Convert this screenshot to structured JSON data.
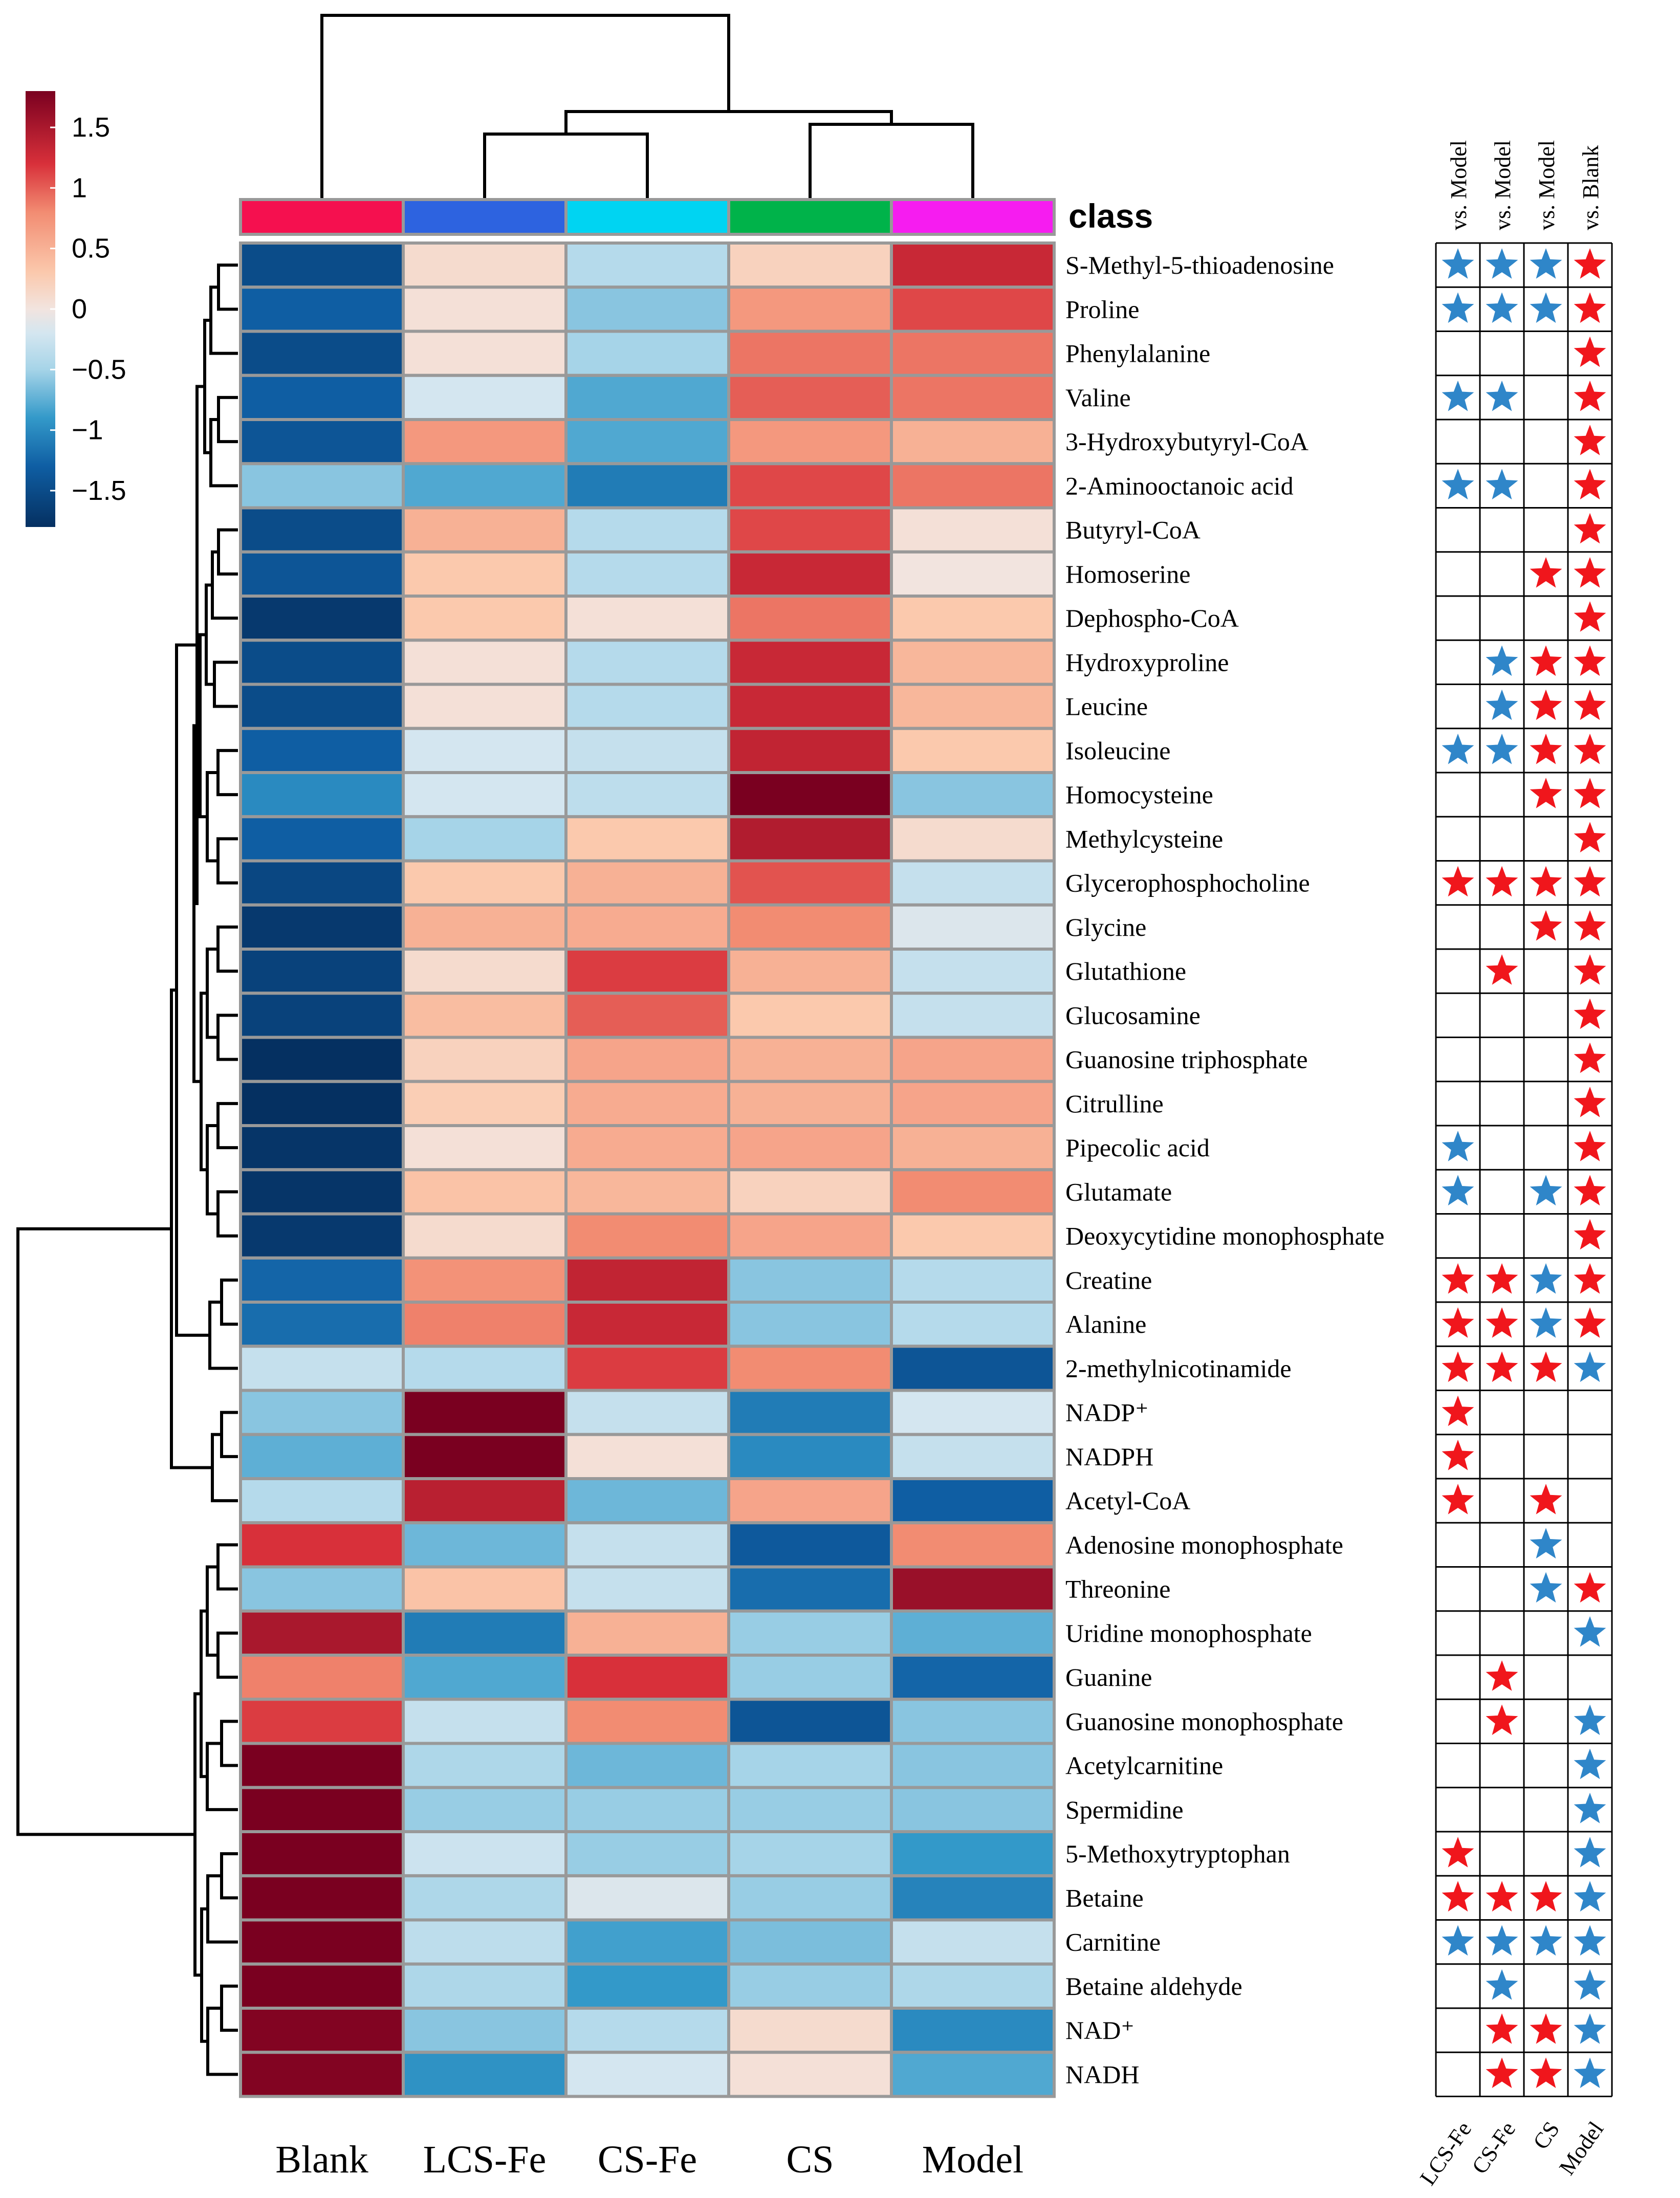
{
  "chart_data": {
    "type": "heatmap",
    "legend_title": "",
    "color_scale": {
      "min": -1.8,
      "max": 1.8,
      "ticks": [
        1.5,
        1,
        0.5,
        0,
        -0.5,
        -1,
        -1.5
      ],
      "tick_labels": [
        "1.5",
        "1",
        "0.5",
        "0",
        "−0.5",
        "−1",
        "−1.5"
      ],
      "stops": [
        {
          "v": -1.8,
          "c": "#053061"
        },
        {
          "v": -1.3,
          "c": "#0f5ea3"
        },
        {
          "v": -0.9,
          "c": "#3399c9"
        },
        {
          "v": -0.5,
          "c": "#a6d4e8"
        },
        {
          "v": -0.2,
          "c": "#d4e6f0"
        },
        {
          "v": 0,
          "c": "#f2e4df"
        },
        {
          "v": 0.3,
          "c": "#fbc9ad"
        },
        {
          "v": 0.8,
          "c": "#f28c72"
        },
        {
          "v": 1.2,
          "c": "#d8303a"
        },
        {
          "v": 1.8,
          "c": "#7a0020"
        }
      ]
    },
    "class_label": "class",
    "columns": [
      "Blank",
      "LCS-Fe",
      "CS-Fe",
      "CS",
      "Model"
    ],
    "class_colors": [
      "#f5104f",
      "#2d63e0",
      "#00d4f2",
      "#00b34a",
      "#f61cf0"
    ],
    "rows": [
      "S-Methyl-5-thioadenosine",
      "Proline",
      "Phenylalanine",
      "Valine",
      "3-Hydroxybutyryl-CoA",
      "2-Aminooctanoic acid",
      "Butyryl-CoA",
      "Homoserine",
      "Dephospho-CoA",
      "Hydroxyproline",
      "Leucine",
      "Isoleucine",
      "Homocysteine",
      "Methylcysteine",
      "Glycerophosphocholine",
      "Glycine",
      "Glutathione",
      "Glucosamine",
      "Guanosine triphosphate",
      "Citrulline",
      "Pipecolic acid",
      "Glutamate",
      "Deoxycytidine monophosphate",
      "Creatine",
      "Alanine",
      "2-methylnicotinamide",
      "NADP⁺",
      "NADPH",
      "Acetyl-CoA",
      "Adenosine monophosphate",
      "Threonine",
      "Uridine monophosphate",
      "Guanine",
      "Guanosine monophosphate",
      "Acetylcarnitine",
      "Spermidine",
      "5-Methoxytryptophan",
      "Betaine",
      "Carnitine",
      "Betaine aldehyde",
      "NAD⁺",
      "NADH"
    ],
    "values": [
      [
        -1.5,
        0.1,
        -0.4,
        0.2,
        1.3
      ],
      [
        -1.3,
        0.05,
        -0.6,
        0.7,
        1.1
      ],
      [
        -1.5,
        0.05,
        -0.5,
        0.9,
        0.9
      ],
      [
        -1.3,
        -0.2,
        -0.8,
        1.0,
        0.9
      ],
      [
        -1.4,
        0.7,
        -0.8,
        0.7,
        0.5
      ],
      [
        -0.6,
        -0.8,
        -1.1,
        1.1,
        0.9
      ],
      [
        -1.5,
        0.5,
        -0.4,
        1.1,
        0.05
      ],
      [
        -1.4,
        0.3,
        -0.4,
        1.3,
        0.0
      ],
      [
        -1.7,
        0.3,
        0.05,
        0.9,
        0.3
      ],
      [
        -1.5,
        0.05,
        -0.4,
        1.3,
        0.45
      ],
      [
        -1.5,
        0.05,
        -0.4,
        1.3,
        0.45
      ],
      [
        -1.3,
        -0.2,
        -0.3,
        1.35,
        0.3
      ],
      [
        -1.0,
        -0.2,
        -0.35,
        1.8,
        -0.6
      ],
      [
        -1.3,
        -0.5,
        0.3,
        1.45,
        0.1
      ],
      [
        -1.55,
        0.3,
        0.5,
        1.05,
        -0.3
      ],
      [
        -1.7,
        0.5,
        0.55,
        0.8,
        -0.15
      ],
      [
        -1.6,
        0.1,
        1.15,
        0.5,
        -0.3
      ],
      [
        -1.6,
        0.4,
        1.0,
        0.3,
        -0.3
      ],
      [
        -1.8,
        0.2,
        0.6,
        0.5,
        0.6
      ],
      [
        -1.8,
        0.25,
        0.55,
        0.5,
        0.6
      ],
      [
        -1.75,
        0.05,
        0.55,
        0.6,
        0.5
      ],
      [
        -1.75,
        0.35,
        0.45,
        0.2,
        0.8
      ],
      [
        -1.7,
        0.1,
        0.8,
        0.6,
        0.3
      ],
      [
        -1.25,
        0.75,
        1.35,
        -0.6,
        -0.4
      ],
      [
        -1.2,
        0.85,
        1.3,
        -0.6,
        -0.4
      ],
      [
        -0.3,
        -0.4,
        1.15,
        0.8,
        -1.4
      ],
      [
        -0.6,
        1.8,
        -0.3,
        -1.1,
        -0.2
      ],
      [
        -0.75,
        1.8,
        0.05,
        -1.0,
        -0.3
      ],
      [
        -0.4,
        1.4,
        -0.7,
        0.6,
        -1.3
      ],
      [
        1.2,
        -0.7,
        -0.3,
        -1.35,
        0.8
      ],
      [
        -0.6,
        0.35,
        -0.3,
        -1.2,
        1.6
      ],
      [
        1.5,
        -1.1,
        0.5,
        -0.55,
        -0.75
      ],
      [
        0.85,
        -0.8,
        1.2,
        -0.55,
        -1.25
      ],
      [
        1.15,
        -0.3,
        0.8,
        -1.4,
        -0.6
      ],
      [
        1.8,
        -0.45,
        -0.7,
        -0.5,
        -0.6
      ],
      [
        1.8,
        -0.55,
        -0.55,
        -0.55,
        -0.6
      ],
      [
        1.8,
        -0.25,
        -0.55,
        -0.5,
        -0.9
      ],
      [
        1.8,
        -0.45,
        -0.15,
        -0.55,
        -1.05
      ],
      [
        1.8,
        -0.35,
        -0.85,
        -0.65,
        -0.3
      ],
      [
        1.8,
        -0.45,
        -0.9,
        -0.55,
        -0.45
      ],
      [
        1.75,
        -0.6,
        -0.4,
        0.1,
        -1.0
      ],
      [
        1.75,
        -0.95,
        -0.2,
        0.05,
        -0.8
      ]
    ],
    "significance": {
      "top_labels": [
        "vs. Model",
        "vs. Model",
        "vs. Model",
        "vs. Blank"
      ],
      "bottom_labels": [
        "LCS-Fe",
        "CS-Fe",
        "CS",
        "Model"
      ],
      "legend": {
        "R": "red star",
        "B": "blue star"
      },
      "marks": [
        [
          "B",
          "B",
          "B",
          "R"
        ],
        [
          "B",
          "B",
          "B",
          "R"
        ],
        [
          "",
          "",
          "",
          "R"
        ],
        [
          "B",
          "B",
          "",
          "R"
        ],
        [
          "",
          "",
          "",
          "R"
        ],
        [
          "B",
          "B",
          "",
          "R"
        ],
        [
          "",
          "",
          "",
          "R"
        ],
        [
          "",
          "",
          "R",
          "R"
        ],
        [
          "",
          "",
          "",
          "R"
        ],
        [
          "",
          "B",
          "R",
          "R"
        ],
        [
          "",
          "B",
          "R",
          "R"
        ],
        [
          "B",
          "B",
          "R",
          "R"
        ],
        [
          "",
          "",
          "R",
          "R"
        ],
        [
          "",
          "",
          "",
          "R"
        ],
        [
          "R",
          "R",
          "R",
          "R"
        ],
        [
          "",
          "",
          "R",
          "R"
        ],
        [
          "",
          "R",
          "",
          "R"
        ],
        [
          "",
          "",
          "",
          "R"
        ],
        [
          "",
          "",
          "",
          "R"
        ],
        [
          "",
          "",
          "",
          "R"
        ],
        [
          "B",
          "",
          "",
          "R"
        ],
        [
          "B",
          "",
          "B",
          "R"
        ],
        [
          "",
          "",
          "",
          "R"
        ],
        [
          "R",
          "R",
          "B",
          "R"
        ],
        [
          "R",
          "R",
          "B",
          "R"
        ],
        [
          "R",
          "R",
          "R",
          "B"
        ],
        [
          "R",
          "",
          "",
          ""
        ],
        [
          "R",
          "",
          "",
          ""
        ],
        [
          "R",
          "",
          "R",
          ""
        ],
        [
          "",
          "",
          "B",
          ""
        ],
        [
          "",
          "",
          "B",
          "R"
        ],
        [
          "",
          "",
          "",
          "B"
        ],
        [
          "",
          "R",
          "",
          ""
        ],
        [
          "",
          "R",
          "",
          "B"
        ],
        [
          "",
          "",
          "",
          "B"
        ],
        [
          "",
          "",
          "",
          "B"
        ],
        [
          "R",
          "",
          "",
          "B"
        ],
        [
          "R",
          "R",
          "R",
          "B"
        ],
        [
          "B",
          "B",
          "B",
          "B"
        ],
        [
          "",
          "B",
          "",
          "B"
        ],
        [
          "",
          "R",
          "R",
          "B"
        ],
        [
          "",
          "R",
          "R",
          "B"
        ]
      ]
    },
    "star_colors": {
      "red": "#f0161c",
      "blue": "#2f86c9"
    }
  }
}
